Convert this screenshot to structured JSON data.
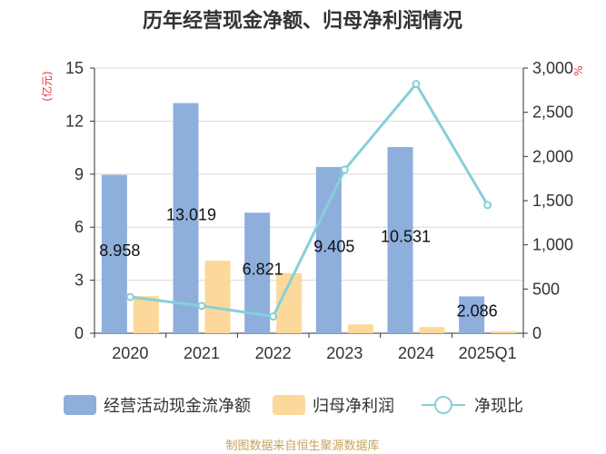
{
  "chart_data": {
    "type": "bar",
    "title": "历年经营现金净额、归母净利润情况",
    "categories": [
      "2020",
      "2021",
      "2022",
      "2023",
      "2024",
      "2025Q1"
    ],
    "left_axis": {
      "unit": "(亿元)",
      "ylim": [
        0,
        15
      ],
      "ticks": [
        "0",
        "3",
        "6",
        "9",
        "12",
        "15"
      ]
    },
    "right_axis": {
      "unit": "%",
      "ylim": [
        0,
        3000
      ],
      "ticks": [
        "0",
        "500",
        "1,000",
        "1,500",
        "2,000",
        "2,500",
        "3,000"
      ]
    },
    "series": [
      {
        "name": "经营活动现金流净额",
        "type": "bar",
        "axis": "left",
        "color": "#8eaedc",
        "values": [
          8.958,
          13.019,
          6.821,
          9.405,
          10.531,
          2.086
        ],
        "labels": [
          "8.958",
          "13.019",
          "6.821",
          "9.405",
          "10.531",
          "2.086"
        ]
      },
      {
        "name": "归母净利润",
        "type": "bar",
        "axis": "left",
        "color": "#fcd89a",
        "values": [
          2.1,
          4.1,
          3.4,
          0.5,
          0.35,
          0.12
        ]
      },
      {
        "name": "净现比",
        "type": "line",
        "axis": "right",
        "color": "#86d0d8",
        "values": [
          410,
          310,
          190,
          1850,
          2820,
          1450
        ]
      }
    ],
    "grid": true,
    "legend_position": "bottom"
  },
  "source": "制图数据来自恒生聚源数据库"
}
